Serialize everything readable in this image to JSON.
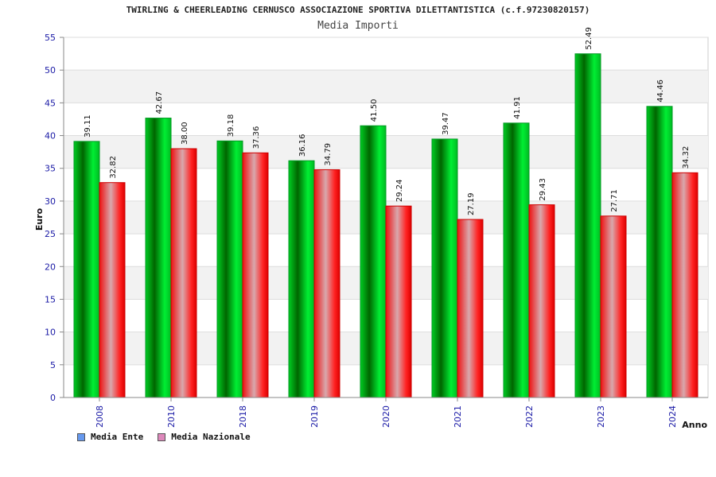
{
  "chart_data": {
    "type": "bar",
    "title": "TWIRLING & CHEERLEADING CERNUSCO ASSOCIAZIONE SPORTIVA DILETTANTISTICA (c.f.97230820157)",
    "subtitle": "Media Importi",
    "xlabel": "Anno",
    "ylabel": "Euro",
    "ylim": [
      0,
      55
    ],
    "yticks": [
      0,
      5,
      10,
      15,
      20,
      25,
      30,
      35,
      40,
      45,
      50,
      55
    ],
    "categories": [
      "2008",
      "2010",
      "2018",
      "2019",
      "2020",
      "2021",
      "2022",
      "2023",
      "2024"
    ],
    "series": [
      {
        "name": "Media Ente",
        "values": [
          39.11,
          42.67,
          39.18,
          36.16,
          41.5,
          39.47,
          41.91,
          52.49,
          44.46
        ],
        "labels": [
          "39.11",
          "42.67",
          "39.18",
          "36.16",
          "41.50",
          "39.47",
          "41.91",
          "52.49",
          "44.46"
        ],
        "color": "#00cc33",
        "legend_color": "#6699ee"
      },
      {
        "name": "Media Nazionale",
        "values": [
          32.82,
          38.0,
          37.36,
          34.79,
          29.24,
          27.19,
          29.43,
          27.71,
          34.32
        ],
        "labels": [
          "32.82",
          "38.00",
          "37.36",
          "34.79",
          "29.24",
          "27.19",
          "29.43",
          "27.71",
          "34.32"
        ],
        "color": "#ee1111",
        "legend_color": "#dd88bb"
      }
    ],
    "grid": true,
    "legend_position": "bottom-left"
  }
}
